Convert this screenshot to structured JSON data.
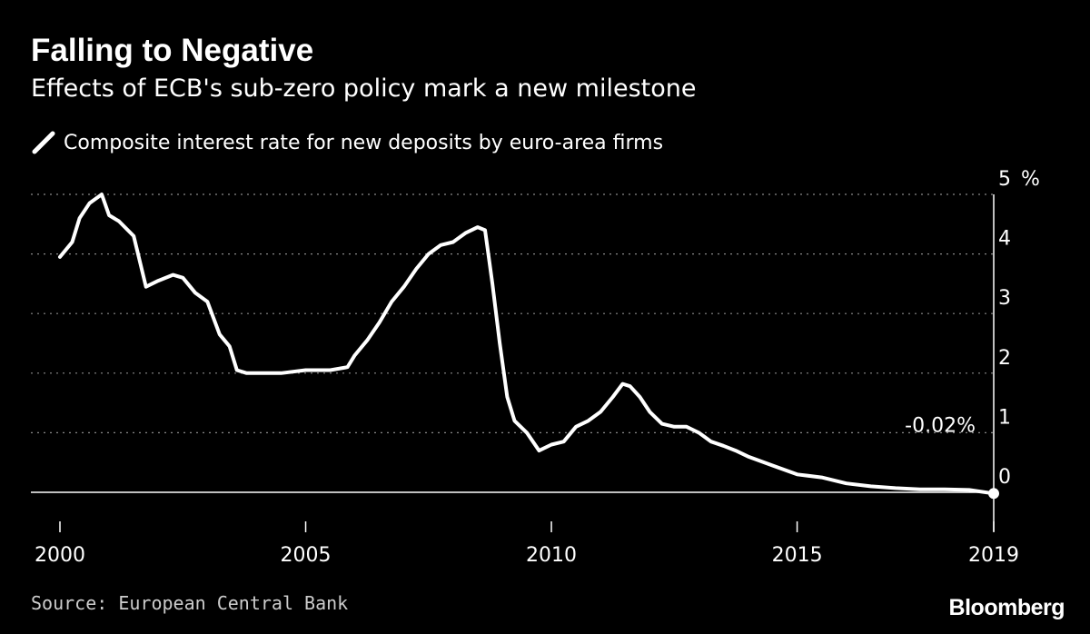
{
  "header": {
    "title": "Falling to Negative",
    "subtitle": "Effects of ECB's sub-zero policy mark a new milestone"
  },
  "footer": {
    "source": "Source: European Central Bank",
    "brand": "Bloomberg"
  },
  "colors": {
    "background": "#000000",
    "line": "#ffffff",
    "grid": "#8a8a8a",
    "text": "#ffffff"
  },
  "chart_data": {
    "type": "line",
    "title": "Falling to Negative",
    "subtitle": "Effects of ECB's sub-zero policy mark a new milestone",
    "xlabel": "",
    "ylabel": "",
    "y_unit": "%",
    "xlim": [
      2000,
      2019
    ],
    "ylim": [
      0,
      5
    ],
    "x_ticks": [
      "2000",
      "2005",
      "2010",
      "2015",
      "2019"
    ],
    "y_ticks": [
      "0",
      "1",
      "2",
      "3",
      "4",
      "5"
    ],
    "grid": "horizontal-dotted",
    "legend_position": "top-left",
    "series": [
      {
        "name": "Composite interest rate for new deposits by euro-area firms",
        "x": [
          2000.0,
          2000.25,
          2000.4,
          2000.6,
          2000.85,
          2001.0,
          2001.2,
          2001.5,
          2001.75,
          2002.0,
          2002.3,
          2002.5,
          2002.75,
          2003.0,
          2003.25,
          2003.45,
          2003.6,
          2003.8,
          2004.0,
          2004.5,
          2005.0,
          2005.2,
          2005.5,
          2005.85,
          2006.0,
          2006.25,
          2006.5,
          2006.75,
          2007.0,
          2007.25,
          2007.5,
          2007.75,
          2008.0,
          2008.25,
          2008.5,
          2008.65,
          2008.8,
          2008.95,
          2009.1,
          2009.25,
          2009.5,
          2009.75,
          2010.0,
          2010.25,
          2010.5,
          2010.75,
          2011.0,
          2011.25,
          2011.45,
          2011.6,
          2011.8,
          2012.0,
          2012.25,
          2012.5,
          2012.75,
          2013.0,
          2013.25,
          2013.5,
          2013.75,
          2014.0,
          2014.5,
          2015.0,
          2015.5,
          2016.0,
          2016.5,
          2017.0,
          2017.5,
          2018.0,
          2018.5,
          2019.0
        ],
        "values": [
          3.95,
          4.2,
          4.6,
          4.85,
          5.0,
          4.65,
          4.55,
          4.3,
          3.45,
          3.55,
          3.65,
          3.6,
          3.35,
          3.2,
          2.65,
          2.45,
          2.05,
          2.0,
          2.0,
          2.0,
          2.05,
          2.05,
          2.05,
          2.1,
          2.3,
          2.55,
          2.85,
          3.2,
          3.45,
          3.75,
          4.0,
          4.15,
          4.2,
          4.35,
          4.45,
          4.4,
          3.5,
          2.5,
          1.6,
          1.2,
          1.0,
          0.7,
          0.8,
          0.85,
          1.1,
          1.2,
          1.35,
          1.6,
          1.82,
          1.78,
          1.6,
          1.35,
          1.15,
          1.1,
          1.1,
          1.0,
          0.85,
          0.78,
          0.7,
          0.6,
          0.45,
          0.3,
          0.25,
          0.15,
          0.1,
          0.07,
          0.05,
          0.05,
          0.04,
          -0.02
        ]
      }
    ],
    "annotations": [
      {
        "x": 2019.0,
        "y": -0.02,
        "text": "-0.02%"
      }
    ]
  }
}
